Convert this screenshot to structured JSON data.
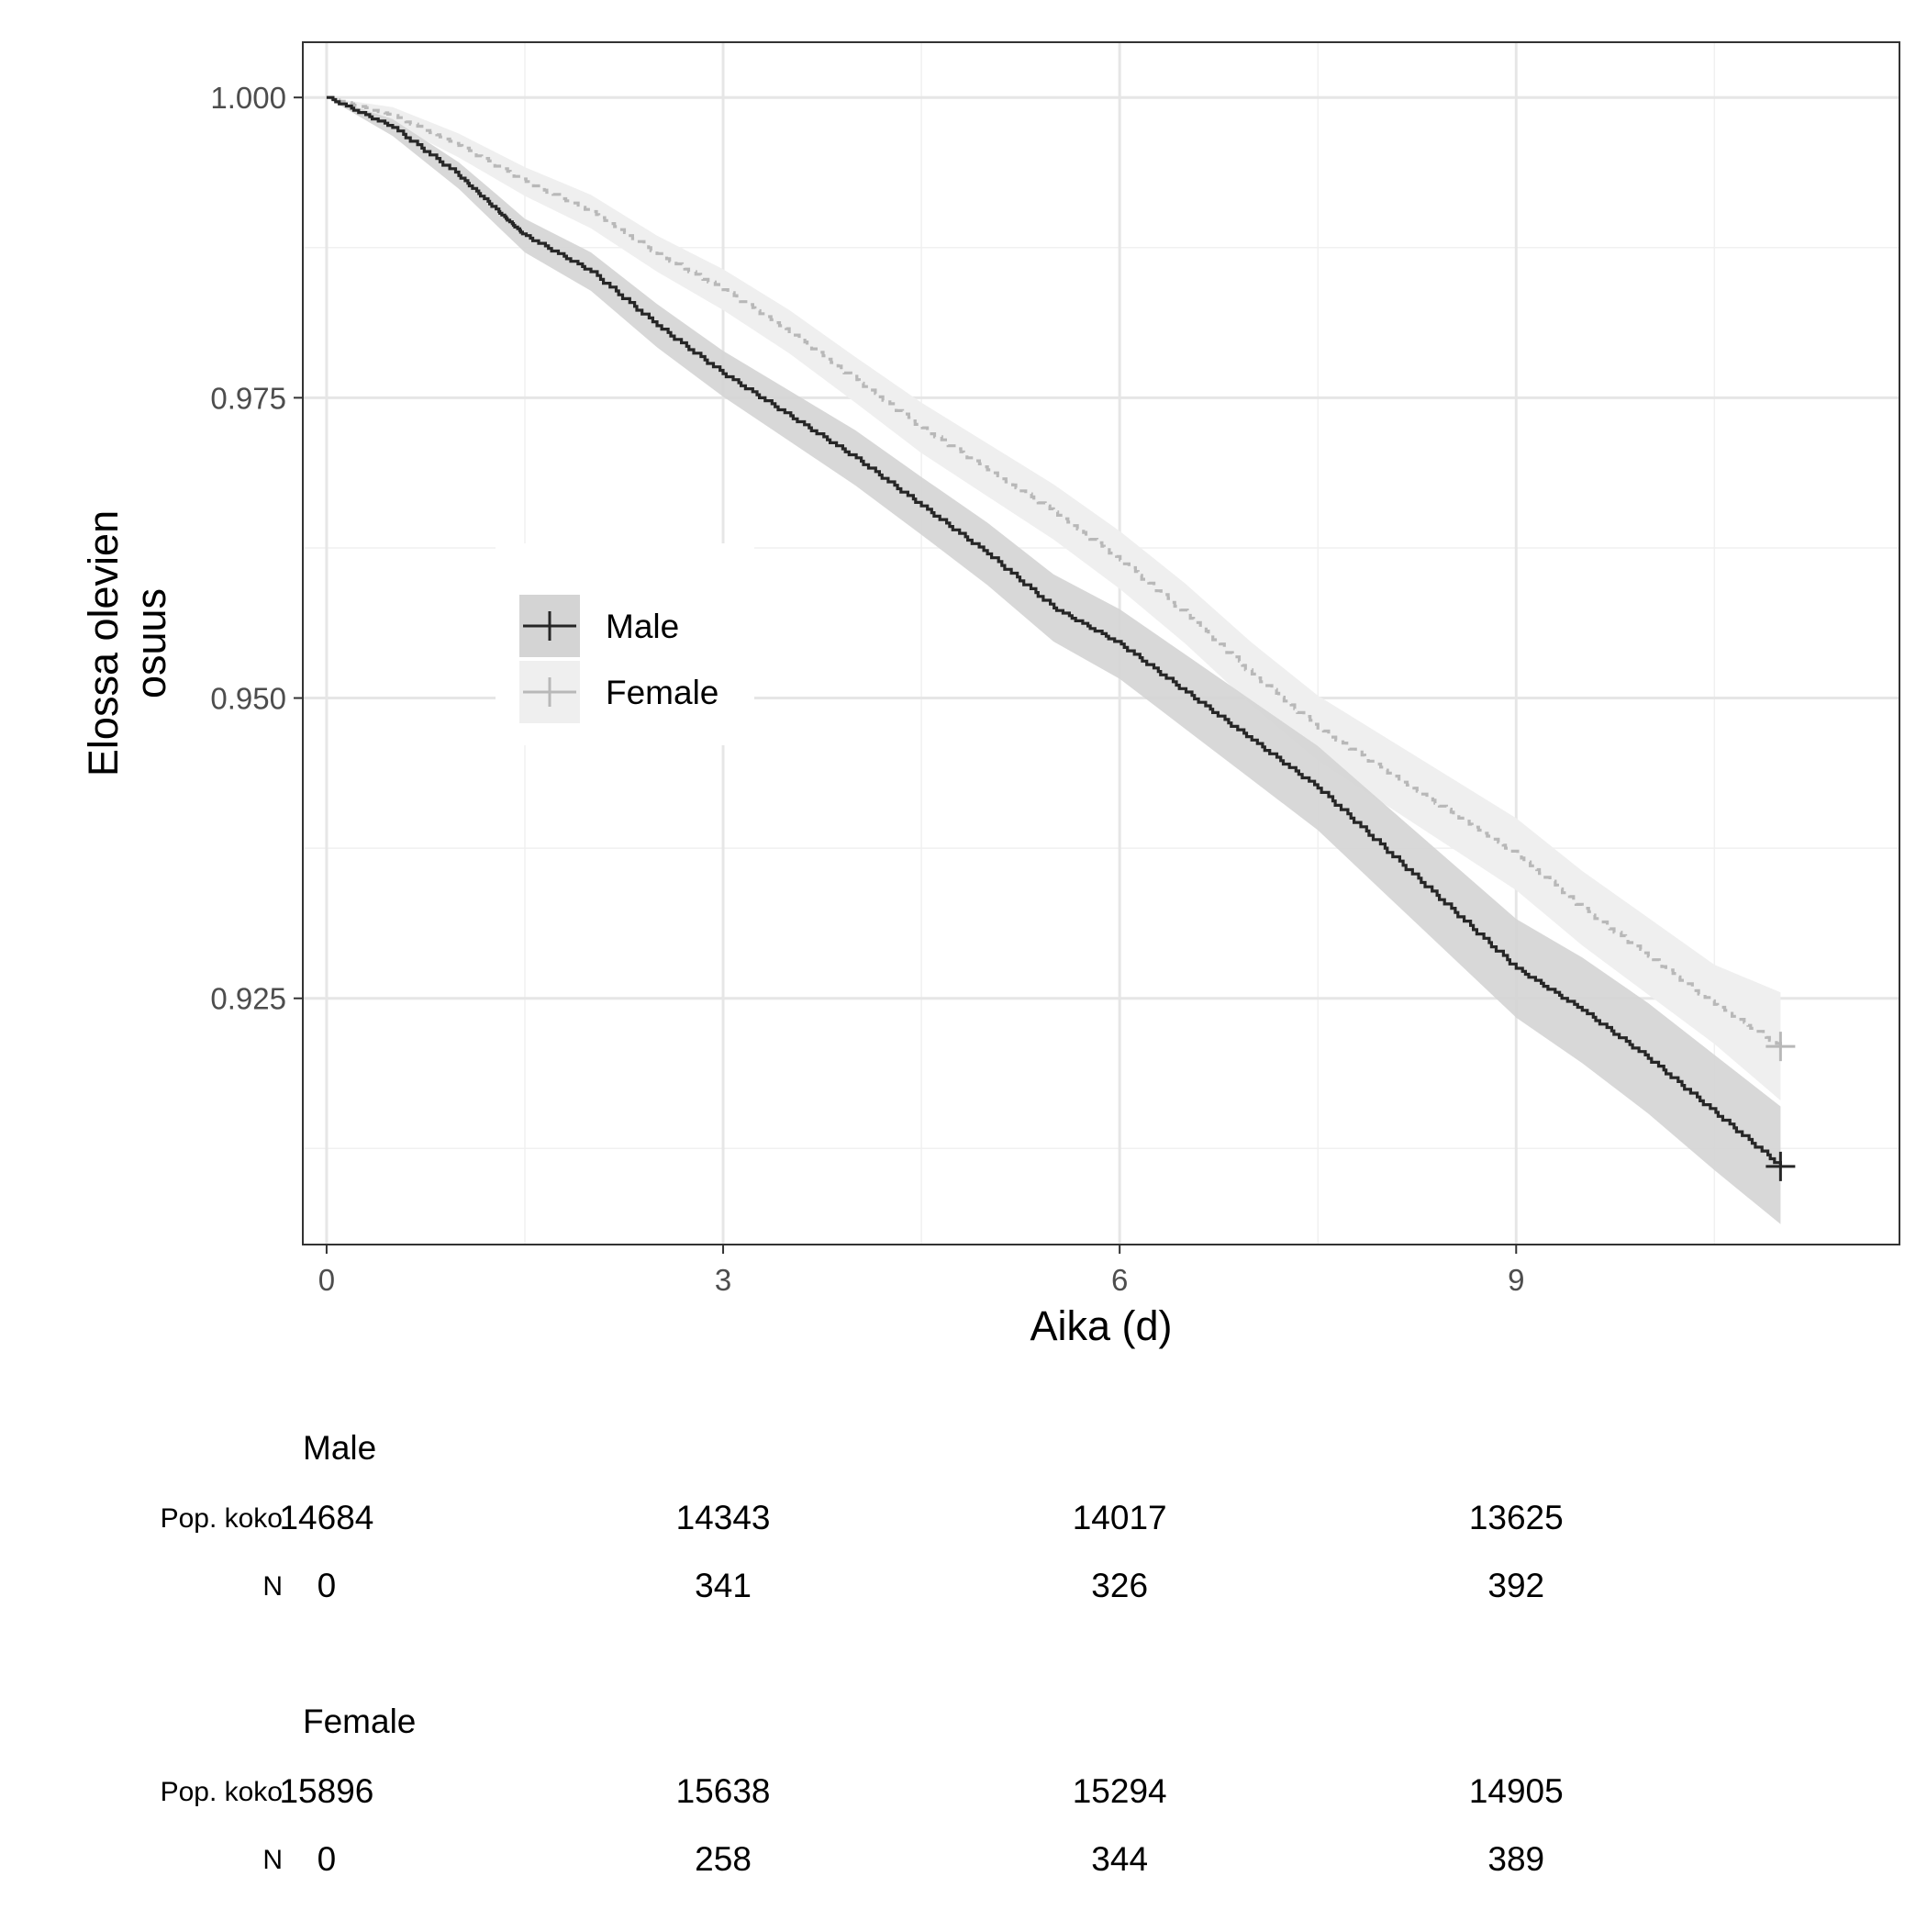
{
  "chart_data": {
    "type": "line",
    "title": "",
    "xlabel": "Aika (d)",
    "ylabel_lines": [
      "Elossa olevien",
      "osuus"
    ],
    "xlim": [
      -0.18,
      11.9
    ],
    "ylim": [
      0.9045,
      1.0046
    ],
    "x_ticks": [
      0,
      3,
      6,
      9
    ],
    "x_tick_labels": [
      "0",
      "3",
      "6",
      "9"
    ],
    "y_ticks": [
      0.925,
      0.95,
      0.975,
      1.0
    ],
    "y_tick_labels": [
      "0.925",
      "0.950",
      "0.975",
      "1.000"
    ],
    "x_minor_gridlines": [
      1.5,
      4.5,
      7.5,
      10.5
    ],
    "y_minor_gridlines": [
      0.9125,
      0.9375,
      0.9625,
      0.9875
    ],
    "grid": true,
    "legend_position": "center-left",
    "series": [
      {
        "name": "Male",
        "color": "#262626",
        "band_color": "#d4d4d4",
        "line_style": "solid",
        "x": [
          0,
          0.5,
          1.0,
          1.3,
          1.5,
          2.0,
          2.5,
          3.0,
          3.5,
          4.0,
          4.5,
          5.0,
          5.5,
          6.0,
          6.5,
          7.0,
          7.5,
          8.0,
          8.5,
          9.0,
          9.5,
          10.0,
          10.5,
          11.0
        ],
        "y": [
          1.0,
          0.9975,
          0.9935,
          0.9905,
          0.9885,
          0.9855,
          0.981,
          0.977,
          0.9735,
          0.97,
          0.966,
          0.962,
          0.9575,
          0.9545,
          0.9505,
          0.9465,
          0.9425,
          0.9375,
          0.9325,
          0.9275,
          0.924,
          0.92,
          0.9155,
          0.911
        ],
        "lower": [
          1.0,
          0.9968,
          0.9924,
          0.9892,
          0.9871,
          0.9839,
          0.9792,
          0.9751,
          0.9714,
          0.9677,
          0.9636,
          0.9594,
          0.9547,
          0.9516,
          0.9474,
          0.9432,
          0.939,
          0.9338,
          0.9286,
          0.9234,
          0.9196,
          0.9154,
          0.9107,
          0.9062
        ],
        "upper": [
          1.0,
          0.9982,
          0.9946,
          0.9918,
          0.9899,
          0.9871,
          0.9828,
          0.9789,
          0.9756,
          0.9723,
          0.9684,
          0.9646,
          0.9603,
          0.9574,
          0.9536,
          0.9498,
          0.946,
          0.9412,
          0.9364,
          0.9316,
          0.9284,
          0.9246,
          0.9203,
          0.916
        ],
        "censor_x": 11.0,
        "censor_y": 0.911
      },
      {
        "name": "Female",
        "color": "#b8b8b8",
        "band_color": "#efefef",
        "line_style": "dashed",
        "x": [
          0,
          0.5,
          1.0,
          1.5,
          2.0,
          2.5,
          3.0,
          3.5,
          4.0,
          4.5,
          5.0,
          5.5,
          6.0,
          6.5,
          7.0,
          7.5,
          8.0,
          8.5,
          9.0,
          9.5,
          10.0,
          10.5,
          11.0
        ],
        "y": [
          1.0,
          0.9985,
          0.996,
          0.993,
          0.9905,
          0.987,
          0.984,
          0.9805,
          0.9765,
          0.9725,
          0.969,
          0.9655,
          0.9615,
          0.957,
          0.952,
          0.9475,
          0.944,
          0.9405,
          0.937,
          0.9325,
          0.9285,
          0.9245,
          0.921
        ],
        "lower": [
          1.0,
          0.9978,
          0.995,
          0.9918,
          0.9891,
          0.9855,
          0.9823,
          0.9787,
          0.9746,
          0.9704,
          0.9668,
          0.9632,
          0.9591,
          0.9545,
          0.9494,
          0.9448,
          0.9412,
          0.9376,
          0.934,
          0.9294,
          0.9253,
          0.9212,
          0.9165
        ],
        "upper": [
          1.0,
          0.9992,
          0.997,
          0.9942,
          0.9919,
          0.9885,
          0.9857,
          0.9823,
          0.9784,
          0.9746,
          0.9712,
          0.9678,
          0.9639,
          0.9595,
          0.9546,
          0.9502,
          0.9468,
          0.9434,
          0.94,
          0.9356,
          0.9317,
          0.9278,
          0.9255
        ],
        "censor_x": 11.0,
        "censor_y": 0.921
      }
    ],
    "risk_table": {
      "row_labels": [
        "Pop. koko",
        "N"
      ],
      "time_points": [
        0,
        3,
        6,
        9
      ],
      "groups": [
        {
          "name": "Male",
          "pop": [
            "14684",
            "14343",
            "14017",
            "13625"
          ],
          "n": [
            "0",
            "341",
            "326",
            "392"
          ]
        },
        {
          "name": "Female",
          "pop": [
            "15896",
            "15638",
            "15294",
            "14905"
          ],
          "n": [
            "0",
            "258",
            "344",
            "389"
          ]
        }
      ]
    }
  }
}
